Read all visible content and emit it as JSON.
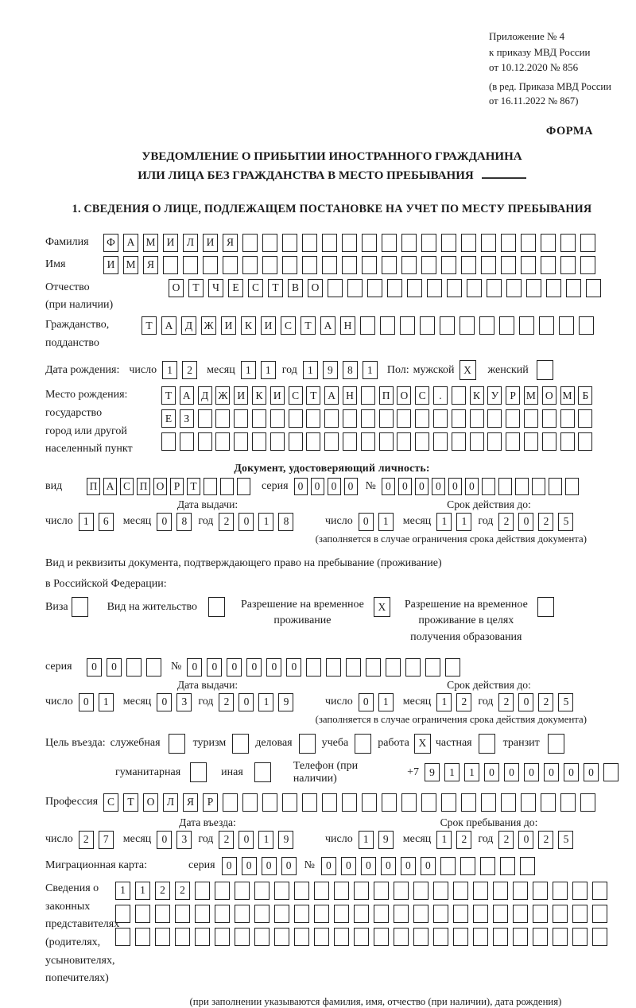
{
  "header": {
    "annex": [
      "Приложение № 4",
      "к приказу МВД России",
      "от 10.12.2020 № 856"
    ],
    "edition": [
      "(в ред. Приказа МВД России",
      "от 16.11.2022 № 867)"
    ],
    "form_label": "ФОРМА"
  },
  "title": {
    "line1": "УВЕДОМЛЕНИЕ О ПРИБЫТИИ ИНОСТРАННОГО ГРАЖДАНИНА",
    "line2": "ИЛИ ЛИЦА БЕЗ ГРАЖДАНСТВА В МЕСТО ПРЕБЫВАНИЯ",
    "section1": "1. СВЕДЕНИЯ О ЛИЦЕ, ПОДЛЕЖАЩЕМ ПОСТАНОВКЕ НА УЧЕТ ПО МЕСТУ ПРЕБЫВАНИЯ"
  },
  "date_labels": {
    "day": "число",
    "month": "месяц",
    "year": "год"
  },
  "person": {
    "surname": {
      "label": "Фамилия",
      "value": "ФАМИЛИЯ",
      "count": 25
    },
    "given_name": {
      "label": "Имя",
      "value": "ИМЯ",
      "count": 25
    },
    "patronymic": {
      "label": [
        "Отчество",
        "(при наличии)"
      ],
      "value": "ОТЧЕСТВО",
      "count": 22
    },
    "citizenship": {
      "label": [
        "Гражданство,",
        "подданство"
      ],
      "value": "ТАДЖИКИСТАН",
      "count": 23
    },
    "birth_date": {
      "label": "Дата рождения:",
      "day": {
        "value": "12",
        "count": 2
      },
      "month": {
        "value": "11",
        "count": 2
      },
      "year": {
        "value": "1981",
        "count": 4
      }
    },
    "sex": {
      "label": "Пол:",
      "male_label": "мужской",
      "male_box": {
        "value": "X",
        "count": 1
      },
      "female_label": "женский",
      "female_box": {
        "value": "",
        "count": 1
      }
    },
    "birth_place": {
      "label": [
        "Место рождения:",
        "государство",
        "город или другой",
        "населенный пункт"
      ],
      "row1": {
        "value": "ТАДЖИКИСТАН ПОС. КУРМОМБ",
        "count": 24
      },
      "row2": {
        "value": "ЕЗ",
        "count": 24
      },
      "row3": {
        "value": "",
        "count": 24
      }
    }
  },
  "identity_doc": {
    "heading": "Документ, удостоверяющий личность:",
    "kind_label": "вид",
    "kind": {
      "value": "ПАСПОРТ",
      "count": 10
    },
    "series_label": "серия",
    "series": {
      "value": "0000",
      "count": 4
    },
    "number_label": "№",
    "number": {
      "value": "000000",
      "count": 12
    },
    "issue_heading": "Дата выдачи:",
    "issue": {
      "day": {
        "value": "16",
        "count": 2
      },
      "month": {
        "value": "08",
        "count": 2
      },
      "year": {
        "value": "2018",
        "count": 4
      }
    },
    "valid_heading": "Срок действия до:",
    "valid": {
      "day": {
        "value": "01",
        "count": 2
      },
      "month": {
        "value": "11",
        "count": 2
      },
      "year": {
        "value": "2025",
        "count": 4
      }
    },
    "note": "(заполняется в случае ограничения срока действия документа)"
  },
  "residence_doc": {
    "intro1": "Вид и реквизиты документа, подтверждающего право на пребывание (проживание)",
    "intro2": "в Российской Федерации:",
    "visa_label": "Виза",
    "visa_box": {
      "value": "",
      "count": 1
    },
    "permit_label": "Вид на жительство",
    "permit_box": {
      "value": "",
      "count": 1
    },
    "rvp_label": [
      "Разрешение на временное",
      "проживание"
    ],
    "rvp_box": {
      "value": "X",
      "count": 1
    },
    "rvp_edu_label": [
      "Разрешение на временное",
      "проживание в целях",
      "получения образования"
    ],
    "rvp_edu_box": {
      "value": "",
      "count": 1
    },
    "series_label": "серия",
    "series": {
      "value": "00",
      "count": 4
    },
    "number_label": "№",
    "number": {
      "value": "000000",
      "count": 14
    },
    "issue_heading": "Дата выдачи:",
    "issue": {
      "day": {
        "value": "01",
        "count": 2
      },
      "month": {
        "value": "03",
        "count": 2
      },
      "year": {
        "value": "2019",
        "count": 4
      }
    },
    "valid_heading": "Срок действия до:",
    "valid": {
      "day": {
        "value": "01",
        "count": 2
      },
      "month": {
        "value": "12",
        "count": 2
      },
      "year": {
        "value": "2025",
        "count": 4
      }
    },
    "note": "(заполняется в случае ограничения срока действия документа)"
  },
  "visit": {
    "label": "Цель въезда:",
    "official_label": "служебная",
    "official_box": {
      "value": "",
      "count": 1
    },
    "tourism_label": "туризм",
    "tourism_box": {
      "value": "",
      "count": 1
    },
    "business_label": "деловая",
    "business_box": {
      "value": "",
      "count": 1
    },
    "study_label": "учеба",
    "study_box": {
      "value": "",
      "count": 1
    },
    "work_label": "работа",
    "work_box": {
      "value": "X",
      "count": 1
    },
    "private_label": "частная",
    "private_box": {
      "value": "",
      "count": 1
    },
    "transit_label": "транзит",
    "transit_box": {
      "value": "",
      "count": 1
    },
    "humanitarian_label": "гуманитарная",
    "humanitarian_box": {
      "value": "",
      "count": 1
    },
    "other_label": "иная",
    "other_box": {
      "value": "",
      "count": 1
    },
    "phone_label": "Телефон (при наличии)",
    "phone_prefix": "+7",
    "phone": {
      "value": "911000000",
      "count": 10
    }
  },
  "profession": {
    "label": "Профессия",
    "value": "СТОЛЯР",
    "count": 25
  },
  "entry": {
    "heading": "Дата въезда:",
    "date": {
      "day": {
        "value": "27",
        "count": 2
      },
      "month": {
        "value": "03",
        "count": 2
      },
      "year": {
        "value": "2019",
        "count": 4
      }
    }
  },
  "stay": {
    "heading": "Срок пребывания до:",
    "date": {
      "day": {
        "value": "19",
        "count": 2
      },
      "month": {
        "value": "12",
        "count": 2
      },
      "year": {
        "value": "2025",
        "count": 4
      }
    }
  },
  "migration_card": {
    "label": "Миграционная карта:",
    "series_label": "серия",
    "series": {
      "value": "0000",
      "count": 4
    },
    "number_label": "№",
    "number": {
      "value": "000000",
      "count": 11
    }
  },
  "representatives": {
    "label": [
      "Сведения о",
      "законных",
      "представителях",
      "(родителях,",
      "усыновителях,",
      "попечителях)"
    ],
    "row1": {
      "value": "1122",
      "count": 25
    },
    "row2": {
      "value": "",
      "count": 25
    },
    "row3": {
      "value": "",
      "count": 25
    },
    "note": "(при заполнении указываются фамилия, имя, отчество (при наличии), дата рождения)"
  }
}
